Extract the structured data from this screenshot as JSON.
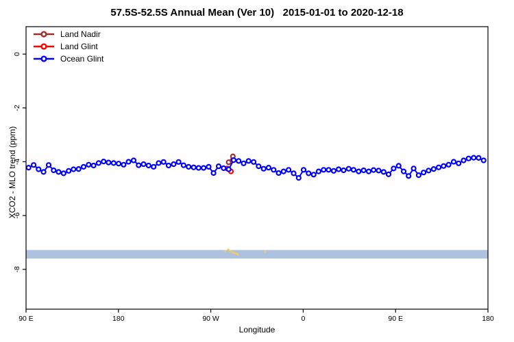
{
  "chart_data": {
    "type": "line",
    "title": "57.5S-52.5S Annual Mean (Ver 10)   2015-01-01 to 2020-12-18",
    "xlabel": "Longitude",
    "ylabel": "XCO2 - MLO trend (ppm)",
    "xlim": [
      90,
      540
    ],
    "ylim": [
      -9.48,
      1.02
    ],
    "grid": "off",
    "legend_position": "top-left",
    "x_ticks": [
      {
        "value": 90,
        "label": "90 E"
      },
      {
        "value": 180,
        "label": "180"
      },
      {
        "value": 270,
        "label": "90 W"
      },
      {
        "value": 360,
        "label": "0"
      },
      {
        "value": 450,
        "label": "90 E"
      },
      {
        "value": 540,
        "label": "180"
      }
    ],
    "y_ticks": [
      {
        "value": 0,
        "label": "0"
      },
      {
        "value": -2,
        "label": "-2"
      },
      {
        "value": -4,
        "label": "-4"
      },
      {
        "value": -6,
        "label": "-6"
      },
      {
        "value": -8,
        "label": "-8"
      }
    ],
    "series": [
      {
        "name": "Land Nadir",
        "color": "#A52A2A",
        "lon": [
          287.4,
          291.5
        ],
        "values": [
          -4.02,
          -3.8
        ]
      },
      {
        "name": "Land Glint",
        "color": "#FF0000",
        "lon": [
          285.9,
          289.6
        ],
        "values": [
          -4.25,
          -4.36
        ]
      },
      {
        "name": "Ocean Glint",
        "color": "#0000FF",
        "lon": [
          92.5,
          97.4,
          102.2,
          107.1,
          112.0,
          116.9,
          121.7,
          126.6,
          131.5,
          136.3,
          141.2,
          146.1,
          151.0,
          155.8,
          160.7,
          165.6,
          170.4,
          175.3,
          180.2,
          185.1,
          189.9,
          194.8,
          199.7,
          204.5,
          209.4,
          214.3,
          219.2,
          224.0,
          228.9,
          233.8,
          238.6,
          243.5,
          248.4,
          253.3,
          258.1,
          263.0,
          267.9,
          272.7,
          277.6,
          282.5,
          287.4,
          292.2,
          297.1,
          302.0,
          306.8,
          311.7,
          316.6,
          321.5,
          326.3,
          331.2,
          336.1,
          340.9,
          345.8,
          350.7,
          355.6,
          360.4,
          365.3,
          370.2,
          375.0,
          379.9,
          384.8,
          389.7,
          394.5,
          399.4,
          404.3,
          409.1,
          414.0,
          418.9,
          423.8,
          428.6,
          433.5,
          438.4,
          443.2,
          448.1,
          453.0,
          457.9,
          462.7,
          467.6,
          472.5,
          477.3,
          482.2,
          487.1,
          492.0,
          496.8,
          501.7,
          506.6,
          511.4,
          516.3,
          521.2,
          526.1,
          530.9,
          535.8
        ],
        "values": [
          -4.22,
          -4.12,
          -4.28,
          -4.38,
          -4.12,
          -4.32,
          -4.38,
          -4.43,
          -4.34,
          -4.28,
          -4.27,
          -4.19,
          -4.11,
          -4.14,
          -4.05,
          -3.99,
          -4.03,
          -4.05,
          -4.07,
          -4.11,
          -4.0,
          -3.95,
          -4.13,
          -4.09,
          -4.14,
          -4.19,
          -4.05,
          -4.01,
          -4.14,
          -4.09,
          -4.01,
          -4.13,
          -4.19,
          -4.21,
          -4.23,
          -4.23,
          -4.19,
          -4.42,
          -4.17,
          -4.24,
          -4.28,
          -3.94,
          -3.97,
          -4.06,
          -3.97,
          -4.01,
          -4.17,
          -4.26,
          -4.22,
          -4.3,
          -4.42,
          -4.36,
          -4.3,
          -4.43,
          -4.6,
          -4.3,
          -4.43,
          -4.48,
          -4.36,
          -4.3,
          -4.3,
          -4.34,
          -4.28,
          -4.32,
          -4.26,
          -4.3,
          -4.36,
          -4.32,
          -4.36,
          -4.31,
          -4.33,
          -4.38,
          -4.47,
          -4.25,
          -4.15,
          -4.36,
          -4.53,
          -4.25,
          -4.5,
          -4.4,
          -4.33,
          -4.27,
          -4.21,
          -4.16,
          -4.11,
          -4.0,
          -4.06,
          -3.95,
          -3.88,
          -3.85,
          -3.86,
          -3.95
        ]
      }
    ],
    "map_strip": {
      "color": "#AEC1DE",
      "value_range": [
        -7.28,
        -7.6
      ],
      "land_color": "#EEC96F",
      "land_lon": [
        284.3,
        287.0,
        289.0,
        291.0,
        293.0,
        295.0,
        296.3,
        323.1
      ],
      "land_values": [
        -7.32,
        -7.27,
        -7.32,
        -7.37,
        -7.4,
        -7.42,
        -7.45,
        -7.34
      ]
    }
  },
  "marker": {
    "radius": 3,
    "stroke_width": 2.2,
    "fill": "#FFFFFF"
  },
  "axis_color": "#000000"
}
